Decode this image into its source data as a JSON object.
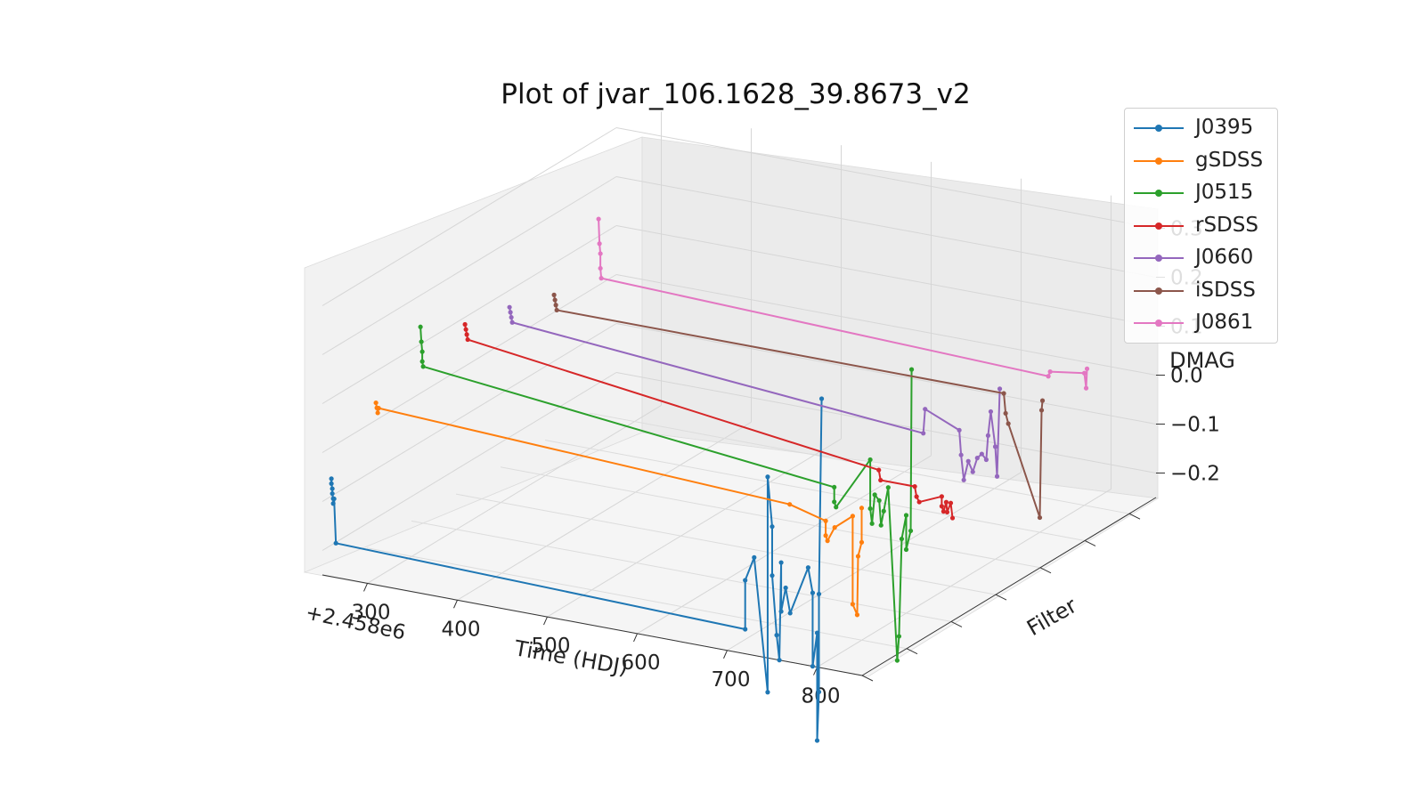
{
  "chart_data": {
    "type": "line",
    "title": "Plot of jvar_106.1628_39.8673_v2",
    "xlabel": "Time (HDJ)",
    "ylabel": "Filter",
    "zlabel": "DMAG",
    "x_offset_label": "+2.458e6",
    "x_ticks": [
      "300",
      "400",
      "500",
      "600",
      "700",
      "800"
    ],
    "z_ticks": [
      "0.3",
      "0.2",
      "0.1",
      "0.0",
      "−0.1",
      "−0.2"
    ],
    "xlim": [
      250,
      850
    ],
    "zlim": [
      -0.25,
      0.35
    ],
    "grid": true,
    "legend_position": "top-right",
    "series": [
      {
        "name": "J0395",
        "color": "#1f77b4",
        "filter_index": 0,
        "x": [
          260,
          260,
          261,
          261,
          262,
          262,
          263,
          265,
          720,
          720,
          730,
          745,
          745,
          750,
          750,
          755,
          758,
          760,
          760,
          765,
          770,
          790,
          795,
          795,
          800,
          800,
          802,
          802,
          805
        ],
        "y": [
          -0.05,
          -0.06,
          -0.07,
          -0.08,
          -0.09,
          -0.1,
          -0.09,
          -0.18,
          -0.2,
          -0.1,
          -0.05,
          -0.32,
          0.12,
          0.02,
          -0.08,
          -0.2,
          -0.25,
          -0.05,
          -0.15,
          -0.1,
          -0.15,
          -0.05,
          -0.1,
          -0.25,
          -0.18,
          -0.4,
          -0.3,
          -0.1,
          0.3
        ]
      },
      {
        "name": "gSDSS",
        "color": "#ff7f0e",
        "filter_index": 1,
        "x": [
          260,
          261,
          262,
          263,
          720,
          760,
          760,
          762,
          770,
          790,
          790,
          795,
          796,
          800,
          800
        ],
        "y": [
          0.05,
          0.04,
          0.03,
          0.04,
          0.0,
          -0.02,
          -0.05,
          -0.06,
          -0.03,
          0.0,
          -0.18,
          -0.2,
          -0.08,
          -0.05,
          0.02
        ]
      },
      {
        "name": "J0515",
        "color": "#2ca02c",
        "filter_index": 2,
        "x": [
          260,
          261,
          262,
          262,
          263,
          720,
          720,
          722,
          760,
          760,
          762,
          765,
          770,
          772,
          775,
          780,
          790,
          792,
          795,
          800,
          800,
          805,
          806
        ],
        "y": [
          0.15,
          0.12,
          0.1,
          0.08,
          0.07,
          -0.02,
          -0.05,
          -0.06,
          0.05,
          -0.05,
          -0.08,
          -0.02,
          -0.03,
          -0.08,
          -0.05,
          0.0,
          -0.35,
          -0.3,
          -0.1,
          -0.05,
          -0.12,
          -0.08,
          0.25
        ]
      },
      {
        "name": "rSDSS",
        "color": "#d62728",
        "filter_index": 3,
        "x": [
          260,
          261,
          262,
          263,
          720,
          722,
          760,
          762,
          765,
          790,
          790,
          792,
          795,
          796,
          800,
          802
        ],
        "y": [
          0.1,
          0.09,
          0.08,
          0.07,
          -0.04,
          -0.06,
          -0.06,
          -0.08,
          -0.09,
          -0.07,
          -0.09,
          -0.1,
          -0.08,
          -0.1,
          -0.08,
          -0.11
        ]
      },
      {
        "name": "J0660",
        "color": "#9467bd",
        "filter_index": 4,
        "x": [
          260,
          261,
          262,
          263,
          720,
          722,
          760,
          762,
          765,
          770,
          775,
          780,
          785,
          790,
          792,
          795,
          800,
          802,
          805
        ],
        "y": [
          0.08,
          0.07,
          0.06,
          0.05,
          -0.02,
          0.03,
          0.0,
          -0.05,
          -0.1,
          -0.06,
          -0.08,
          -0.05,
          -0.04,
          -0.05,
          0.0,
          0.05,
          -0.02,
          -0.08,
          0.1
        ]
      },
      {
        "name": "iSDSS",
        "color": "#8c564b",
        "filter_index": 5,
        "x": [
          260,
          261,
          262,
          263,
          760,
          762,
          765,
          800,
          802,
          803
        ],
        "y": [
          0.05,
          0.04,
          0.03,
          0.02,
          0.02,
          -0.02,
          -0.04,
          -0.22,
          0.0,
          0.02
        ]
      },
      {
        "name": "J0861",
        "color": "#e377c2",
        "filter_index": 6,
        "x": [
          260,
          261,
          262,
          262,
          263,
          760,
          762,
          800,
          802,
          803
        ],
        "y": [
          0.15,
          0.1,
          0.08,
          0.05,
          0.03,
          0.0,
          0.01,
          0.02,
          -0.01,
          0.03
        ]
      }
    ]
  }
}
